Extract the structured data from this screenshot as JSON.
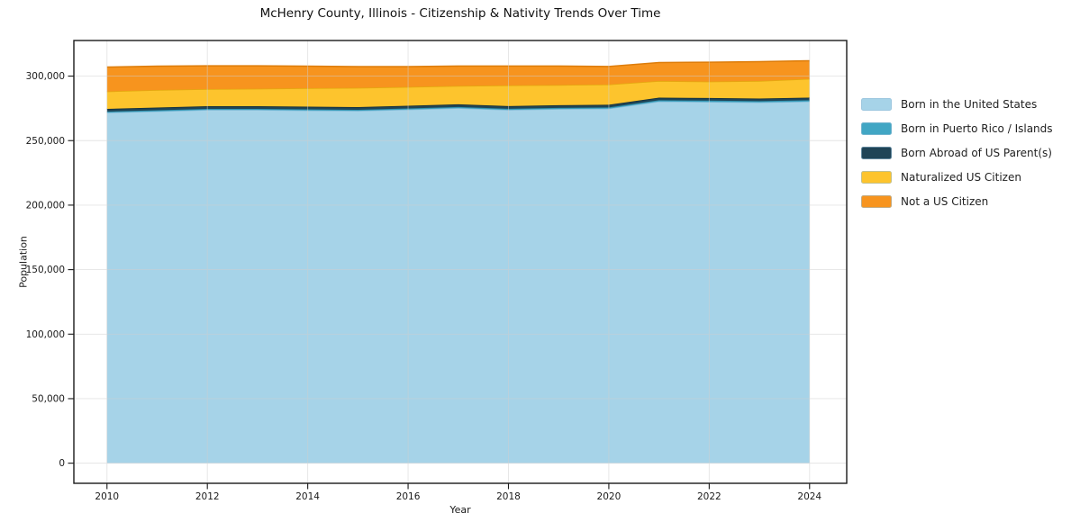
{
  "chart_data": {
    "type": "area",
    "stacked": true,
    "title": "McHenry County, Illinois - Citizenship & Nativity Trends Over Time",
    "xlabel": "Year",
    "ylabel": "Population",
    "x": [
      2010,
      2011,
      2012,
      2013,
      2014,
      2015,
      2016,
      2017,
      2018,
      2019,
      2020,
      2021,
      2022,
      2023,
      2024
    ],
    "x_tick_labels": [
      "2010",
      "2012",
      "2014",
      "2016",
      "2018",
      "2020",
      "2022",
      "2024"
    ],
    "x_tick_values": [
      2010,
      2012,
      2014,
      2016,
      2018,
      2020,
      2022,
      2024
    ],
    "y_tick_labels": [
      "0",
      "50,000",
      "100,000",
      "150,000",
      "200,000",
      "250,000",
      "300,000"
    ],
    "y_tick_values": [
      0,
      50000,
      100000,
      150000,
      200000,
      250000,
      300000
    ],
    "xlim": [
      2009.34,
      2024.74
    ],
    "ylim": [
      -15600,
      327600
    ],
    "grid": true,
    "legend_position": "right-outside",
    "series": [
      {
        "name": "Born in the United States",
        "color": "#a6d3e8",
        "edge": "#85bcd9",
        "values": [
          271700,
          272700,
          273800,
          273800,
          273400,
          273100,
          274100,
          275200,
          273800,
          274500,
          274800,
          280300,
          280000,
          279600,
          280300
        ]
      },
      {
        "name": "Born in Puerto Rico / Islands",
        "color": "#41a6c4",
        "edge": "#2e8fab",
        "values": [
          800,
          800,
          800,
          800,
          800,
          800,
          800,
          900,
          900,
          900,
          900,
          1000,
          1000,
          1000,
          1000
        ]
      },
      {
        "name": "Born Abroad of US Parent(s)",
        "color": "#1f4456",
        "edge": "#132c39",
        "values": [
          2100,
          2100,
          2100,
          2100,
          2100,
          2100,
          2100,
          2100,
          2100,
          2100,
          2100,
          2000,
          2000,
          2000,
          2000
        ]
      },
      {
        "name": "Naturalized US Citizen",
        "color": "#fdc42d",
        "edge": "#e3a90e",
        "values": [
          13500,
          13600,
          13200,
          13500,
          14300,
          14900,
          14600,
          14200,
          16000,
          15600,
          15700,
          12900,
          12800,
          13600,
          14600
        ]
      },
      {
        "name": "Not a US Citizen",
        "color": "#f7941e",
        "edge": "#dd7c09",
        "values": [
          18900,
          18500,
          18100,
          17800,
          17100,
          16500,
          15800,
          15400,
          15000,
          14700,
          14000,
          14300,
          15000,
          15000,
          14000
        ]
      }
    ],
    "totals": [
      307000,
      307700,
      308000,
      308000,
      307700,
      307400,
      307400,
      307800,
      307800,
      307800,
      307500,
      310500,
      310800,
      311200,
      311900
    ],
    "colors": {
      "grid": "#cfcfcf",
      "spine": "#1a1a1a",
      "text": "#1a1a1a",
      "background": "#ffffff"
    }
  }
}
